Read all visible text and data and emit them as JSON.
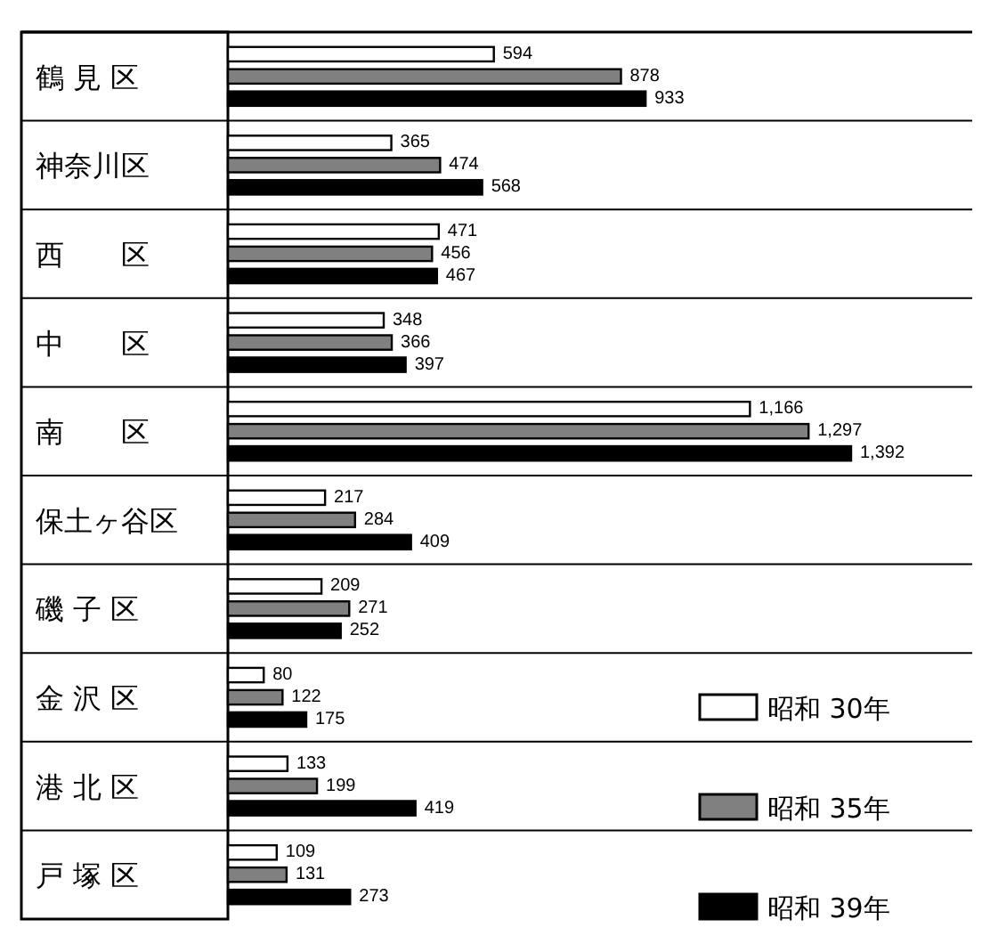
{
  "chart_data": {
    "type": "bar",
    "orientation": "horizontal",
    "categories": [
      "鶴 見 区",
      "神奈川区",
      "西　　区",
      "中　　区",
      "南　　区",
      "保土ヶ谷区",
      "磯 子 区",
      "金 沢 区",
      "港 北 区",
      "戸 塚 区"
    ],
    "series": [
      {
        "name": "昭和 30年",
        "color": "#ffffff",
        "values": [
          594,
          365,
          471,
          348,
          1166,
          217,
          209,
          80,
          133,
          109
        ],
        "value_labels": [
          "594",
          "365",
          "471",
          "348",
          "1,166",
          "217",
          "209",
          "80",
          "133",
          "109"
        ]
      },
      {
        "name": "昭和 35年",
        "color": "#808080",
        "values": [
          878,
          474,
          456,
          366,
          1297,
          284,
          271,
          122,
          199,
          131
        ],
        "value_labels": [
          "878",
          "474",
          "456",
          "366",
          "1,297",
          "284",
          "271",
          "122",
          "199",
          "131"
        ]
      },
      {
        "name": "昭和 39年",
        "color": "#000000",
        "values": [
          933,
          568,
          467,
          397,
          1392,
          409,
          252,
          175,
          419,
          273
        ],
        "value_labels": [
          "933",
          "568",
          "467",
          "397",
          "1,392",
          "409",
          "252",
          "175",
          "419",
          "273"
        ]
      }
    ],
    "legend": "bottom right"
  }
}
